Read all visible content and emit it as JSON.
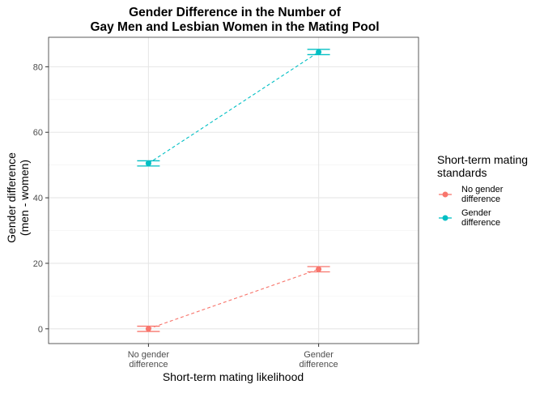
{
  "chart_data": {
    "type": "line",
    "title": [
      "Gender Difference in the Number of",
      "Gay Men and Lesbian Women in the Mating Pool"
    ],
    "xlabel": "Short-term mating likelihood",
    "ylabel": [
      "Gender difference",
      "(men - women)"
    ],
    "categories": [
      [
        "No gender",
        "difference"
      ],
      [
        "Gender",
        "difference"
      ]
    ],
    "ylim": [
      -4.5,
      89
    ],
    "yticks": [
      0,
      20,
      40,
      60,
      80
    ],
    "grid": true,
    "legend": {
      "title": [
        "Short-term mating",
        "standards"
      ],
      "position": "right"
    },
    "series": [
      {
        "name": [
          "No gender",
          "difference"
        ],
        "color": "#F8766D",
        "values": [
          0,
          18.2
        ],
        "error_low": [
          -0.8,
          17.4
        ],
        "error_high": [
          0.8,
          19.0
        ]
      },
      {
        "name": [
          "Gender",
          "difference"
        ],
        "color": "#00BFC4",
        "values": [
          50.5,
          84.5
        ],
        "error_low": [
          49.7,
          83.7
        ],
        "error_high": [
          51.3,
          85.3
        ]
      }
    ]
  }
}
